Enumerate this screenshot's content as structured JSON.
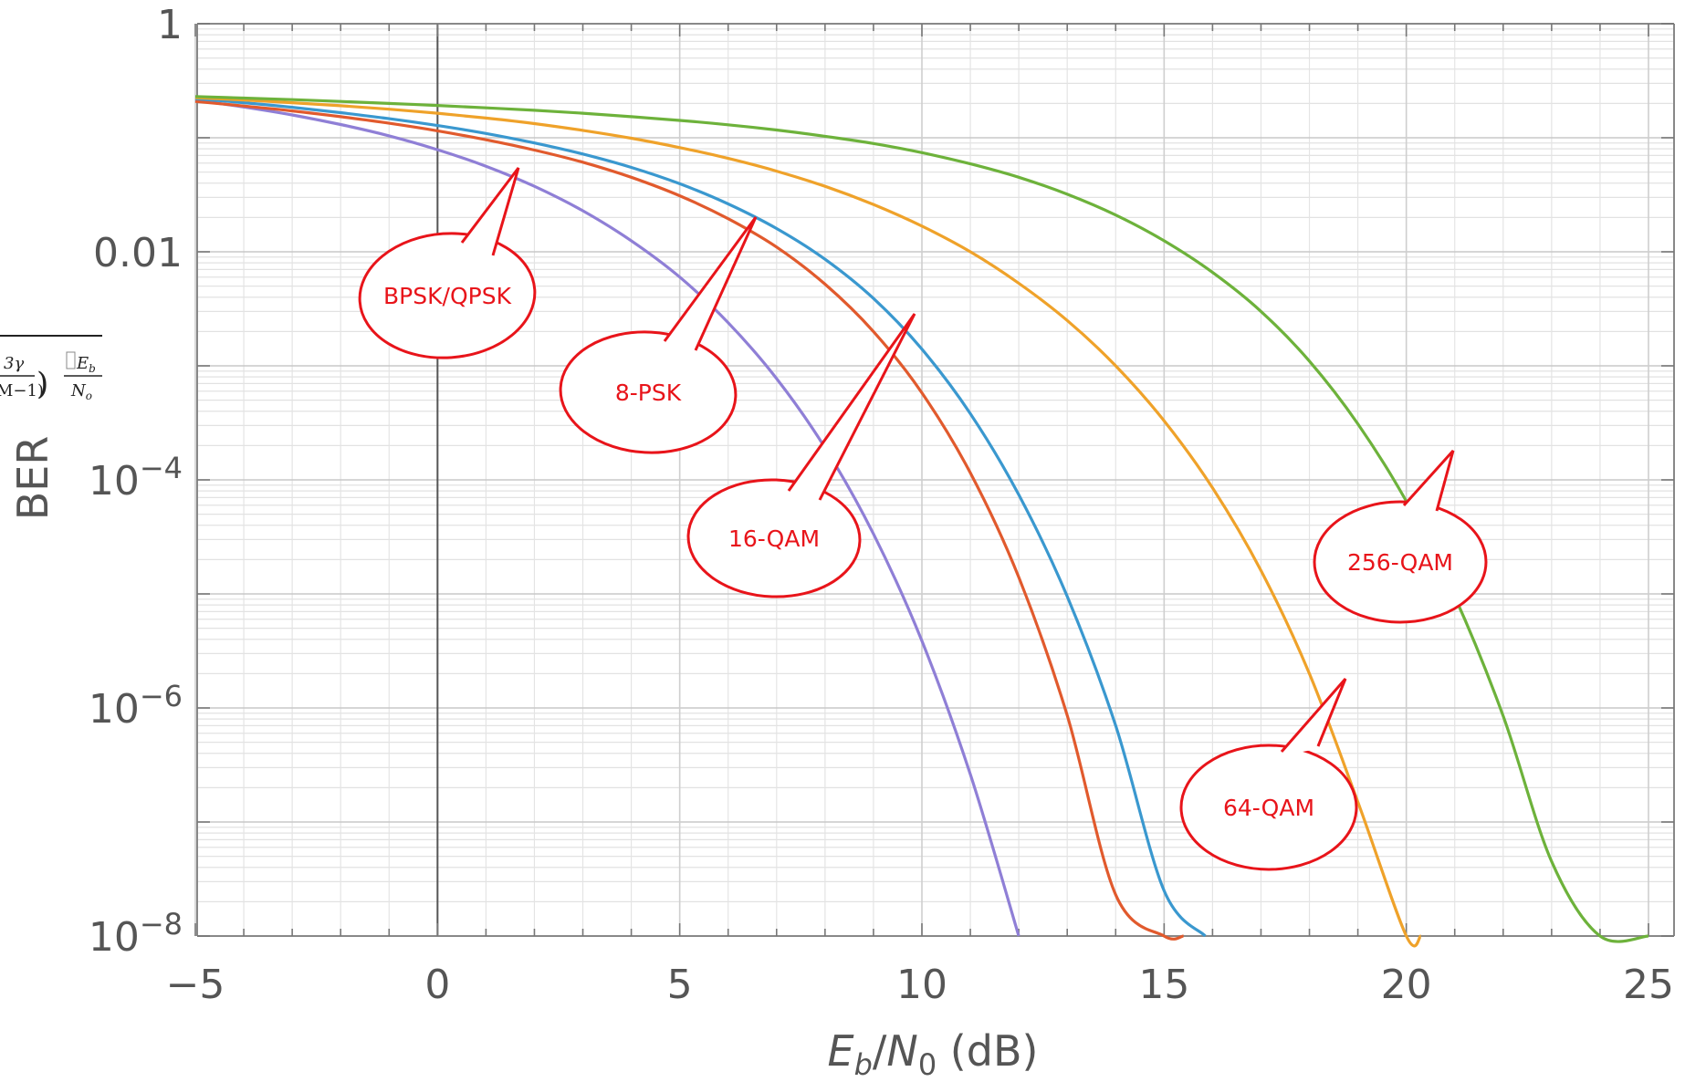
{
  "chart_data": {
    "type": "line",
    "title": "",
    "xlabel": {
      "e": "E",
      "b": "b",
      "slash": "/",
      "n": "N",
      "zero": "0",
      "unit": " (dB)"
    },
    "ylabel": "BER",
    "xlim": [
      -5,
      25
    ],
    "ylim_log10": [
      -8,
      0
    ],
    "y_scale": "log",
    "grid": true,
    "x_ticks": [
      {
        "value": -5,
        "label": "−5"
      },
      {
        "value": 0,
        "label": "0"
      },
      {
        "value": 5,
        "label": "5"
      },
      {
        "value": 10,
        "label": "10"
      },
      {
        "value": 15,
        "label": "15"
      },
      {
        "value": 20,
        "label": "20"
      },
      {
        "value": 25,
        "label": "25"
      }
    ],
    "y_ticks": [
      {
        "log10": 0,
        "label": "1",
        "exp": ""
      },
      {
        "log10": -2,
        "label": "0.01",
        "exp": ""
      },
      {
        "log10": -4,
        "label": "10",
        "exp": "−4"
      },
      {
        "log10": -6,
        "label": "10",
        "exp": "−6"
      },
      {
        "log10": -8,
        "label": "10",
        "exp": "−8"
      }
    ],
    "series": [
      {
        "name": "BPSK/QPSK",
        "color": "#8f7fd6",
        "x": [
          -5,
          -4,
          -3,
          -2,
          -1,
          0,
          1,
          2,
          3,
          4,
          5,
          6,
          7,
          8,
          9,
          10,
          11,
          12
        ],
        "y": [
          0.2132,
          0.1861,
          0.1584,
          0.1306,
          0.104,
          0.0786,
          0.0563,
          0.0375,
          0.0229,
          0.0125,
          0.006,
          0.00239,
          0.000773,
          0.000191,
          3.36e-05,
          3.87e-06,
          2.61e-07,
          9e-09
        ]
      },
      {
        "name": "8-PSK",
        "color": "#e15a2d",
        "x": [
          -5,
          -4,
          -3,
          -2,
          -1,
          0,
          1,
          2,
          3,
          4,
          5,
          6,
          7,
          8,
          9,
          10,
          11,
          12,
          13,
          14,
          15,
          15.4
        ],
        "y": [
          0.208,
          0.19,
          0.172,
          0.153,
          0.134,
          0.115,
          0.096,
          0.078,
          0.061,
          0.045,
          0.031,
          0.0195,
          0.011,
          0.0052,
          0.002,
          0.00058,
          0.000115,
          1.4e-05,
          8.6e-07,
          2.3e-08,
          2e-10,
          1e-08
        ]
      },
      {
        "name": "16-QAM",
        "color": "#3a98cf",
        "x": [
          -5,
          -4,
          -3,
          -2,
          -1,
          0,
          1,
          2,
          3,
          4,
          5,
          6,
          7,
          8,
          9,
          10,
          11,
          12,
          13,
          14,
          15,
          15.85
        ],
        "y": [
          0.22,
          0.203,
          0.185,
          0.166,
          0.147,
          0.128,
          0.109,
          0.09,
          0.072,
          0.055,
          0.0395,
          0.0263,
          0.016,
          0.0086,
          0.0039,
          0.0014,
          0.00038,
          7.4e-05,
          9.5e-06,
          7e-07,
          2.5e-08,
          1e-08
        ]
      },
      {
        "name": "64-QAM",
        "color": "#efa22a",
        "x": [
          -5,
          -4,
          -3,
          -2,
          -1,
          0,
          1,
          2,
          3,
          4,
          5,
          6,
          7,
          8,
          9,
          10,
          11,
          12,
          13,
          14,
          15,
          16,
          17,
          18,
          19,
          20,
          20.3
        ],
        "y": [
          0.225,
          0.214,
          0.203,
          0.191,
          0.178,
          0.164,
          0.149,
          0.133,
          0.116,
          0.099,
          0.082,
          0.066,
          0.051,
          0.0375,
          0.026,
          0.0168,
          0.01,
          0.0053,
          0.0025,
          0.001,
          0.00033,
          8.5e-05,
          1.6e-05,
          2e-06,
          1.5e-07,
          5.5e-09,
          1e-08
        ]
      },
      {
        "name": "256-QAM",
        "color": "#6db23b",
        "x": [
          -5,
          -4,
          -3,
          -2,
          -1,
          0,
          1,
          2,
          3,
          4,
          5,
          6,
          7,
          8,
          9,
          10,
          11,
          12,
          13,
          14,
          15,
          16,
          17,
          18,
          19,
          20,
          21,
          22,
          23,
          24,
          25
        ],
        "y": [
          0.23,
          0.223,
          0.216,
          0.208,
          0.2,
          0.192,
          0.183,
          0.174,
          0.164,
          0.153,
          0.142,
          0.13,
          0.117,
          0.103,
          0.089,
          0.074,
          0.059,
          0.045,
          0.032,
          0.021,
          0.0125,
          0.0066,
          0.003,
          0.0011,
          0.00031,
          6.5e-05,
          9.5e-06,
          8.5e-07,
          4.5e-08,
          1.5e-09,
          1e-08
        ]
      }
    ],
    "annotations": [
      {
        "label": "BPSK/QPSK",
        "series": "BPSK/QPSK"
      },
      {
        "label": "8-PSK",
        "series": "8-PSK"
      },
      {
        "label": "16-QAM",
        "series": "16-QAM"
      },
      {
        "label": "64-QAM",
        "series": "64-QAM"
      },
      {
        "label": "256-QAM",
        "series": "256-QAM"
      }
    ],
    "formula_fragment": {
      "num": "3γ",
      "den": "M−1)",
      "paren": ")",
      "eb_e": "E",
      "eb_b": "b",
      "no_n": "N",
      "no_o": "o"
    }
  }
}
